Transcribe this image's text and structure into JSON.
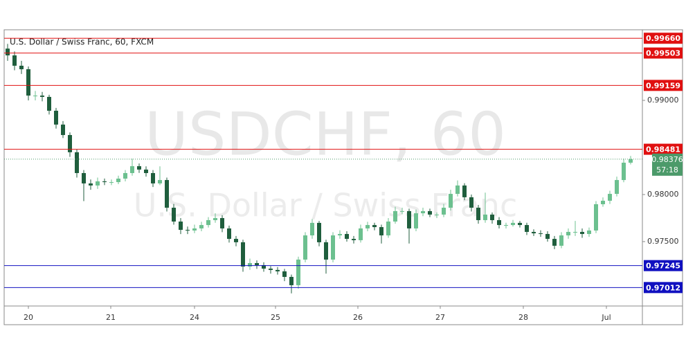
{
  "chart_data": {
    "type": "candlestick",
    "title": "U.S. Dollar / Swiss Franc, 60, FXCM",
    "watermark": "USDCHF, 60",
    "watermark_subtitle": "U.S. Dollar / Swiss Franc",
    "up_color": "#6cc08f",
    "down_color": "#1f5e3d",
    "open": [
      0.9955,
      0.99478,
      0.99368,
      0.99331,
      0.99051,
      0.99051,
      0.99037,
      0.9889,
      0.98743,
      0.98632,
      0.98449,
      0.98228,
      0.98118,
      0.98096,
      0.9814,
      0.98132,
      0.98132,
      0.98169,
      0.98228,
      0.98301,
      0.98265,
      0.98228,
      0.98118,
      0.98154,
      0.9786,
      0.97713,
      0.97625,
      0.97618,
      0.9764,
      0.97676,
      0.97728,
      0.9775,
      0.9764,
      0.97529,
      0.97493,
      0.97235,
      0.97272,
      0.9725,
      0.97213,
      0.97199,
      0.97184,
      0.97125,
      0.97037,
      0.97309,
      0.97566,
      0.97699,
      0.97493,
      0.97309,
      0.97566,
      0.97581,
      0.97529,
      0.97515,
      0.9764,
      0.97676,
      0.97654,
      0.97566,
      0.97713,
      0.97824,
      0.97824,
      0.9764,
      0.97801,
      0.97824,
      0.97787,
      0.97787,
      0.9786,
      0.98007,
      0.98096,
      0.97971,
      0.9786,
      0.97728,
      0.97787,
      0.97728,
      0.97676,
      0.97676,
      0.97699,
      0.97676,
      0.97603,
      0.97588,
      0.97581,
      0.97529,
      0.97456,
      0.97566,
      0.97603,
      0.97603,
      0.97581,
      0.97618,
      0.97897,
      0.97934,
      0.98007,
      0.98154,
      0.98338
    ],
    "high": [
      0.996,
      0.9952,
      0.9942,
      0.9936,
      0.991,
      0.9909,
      0.9906,
      0.9892,
      0.9878,
      0.9866,
      0.9848,
      0.9826,
      0.9816,
      0.9818,
      0.9817,
      0.9816,
      0.982,
      0.9826,
      0.9838,
      0.9833,
      0.983,
      0.9826,
      0.983,
      0.9818,
      0.979,
      0.9775,
      0.9766,
      0.9768,
      0.9771,
      0.9776,
      0.978,
      0.9778,
      0.9767,
      0.9756,
      0.9752,
      0.9732,
      0.973,
      0.9728,
      0.9724,
      0.9723,
      0.9721,
      0.9715,
      0.9734,
      0.976,
      0.9774,
      0.9772,
      0.9752,
      0.976,
      0.9762,
      0.9761,
      0.9756,
      0.9768,
      0.9771,
      0.977,
      0.9768,
      0.9775,
      0.9787,
      0.9786,
      0.9785,
      0.9784,
      0.9786,
      0.9785,
      0.9781,
      0.979,
      0.9805,
      0.9815,
      0.9812,
      0.98,
      0.9789,
      0.9802,
      0.9781,
      0.9776,
      0.977,
      0.9773,
      0.9772,
      0.977,
      0.9763,
      0.9762,
      0.9761,
      0.9756,
      0.976,
      0.9764,
      0.9772,
      0.9764,
      0.9765,
      0.9793,
      0.9797,
      0.9804,
      0.9819,
      0.9838,
      0.9841
    ],
    "low": [
      0.9942,
      0.9932,
      0.9928,
      0.99,
      0.99,
      0.9899,
      0.9885,
      0.987,
      0.986,
      0.984,
      0.9818,
      0.9793,
      0.9805,
      0.9806,
      0.981,
      0.981,
      0.9811,
      0.9814,
      0.982,
      0.9823,
      0.9819,
      0.9808,
      0.981,
      0.9782,
      0.9768,
      0.9758,
      0.9758,
      0.9759,
      0.9761,
      0.9765,
      0.977,
      0.976,
      0.9749,
      0.9745,
      0.9718,
      0.972,
      0.9721,
      0.9718,
      0.9716,
      0.9715,
      0.9708,
      0.9695,
      0.97,
      0.9728,
      0.9753,
      0.9745,
      0.9716,
      0.9728,
      0.9753,
      0.975,
      0.9748,
      0.9749,
      0.9761,
      0.9762,
      0.9748,
      0.9754,
      0.9769,
      0.9779,
      0.9748,
      0.9761,
      0.9777,
      0.9776,
      0.9775,
      0.9776,
      0.9783,
      0.9798,
      0.9794,
      0.9782,
      0.9769,
      0.977,
      0.9769,
      0.9764,
      0.9764,
      0.9766,
      0.9765,
      0.9757,
      0.9756,
      0.9755,
      0.975,
      0.9742,
      0.9743,
      0.9753,
      0.9756,
      0.9754,
      0.9755,
      0.9759,
      0.9787,
      0.979,
      0.9798,
      0.9813,
      0.9832
    ],
    "close": [
      0.99478,
      0.99368,
      0.99331,
      0.99051,
      0.99051,
      0.99037,
      0.9889,
      0.98743,
      0.98632,
      0.98449,
      0.98228,
      0.98118,
      0.98096,
      0.9814,
      0.98132,
      0.98132,
      0.98169,
      0.98228,
      0.98301,
      0.98265,
      0.98228,
      0.98118,
      0.98154,
      0.9786,
      0.97713,
      0.97625,
      0.97618,
      0.9764,
      0.97676,
      0.97728,
      0.9775,
      0.9764,
      0.97529,
      0.97493,
      0.97235,
      0.97272,
      0.9725,
      0.97213,
      0.97199,
      0.97184,
      0.97125,
      0.97037,
      0.97309,
      0.97566,
      0.97699,
      0.97493,
      0.97309,
      0.97566,
      0.97581,
      0.97529,
      0.97515,
      0.9764,
      0.97676,
      0.97654,
      0.97566,
      0.97713,
      0.97824,
      0.97824,
      0.9764,
      0.97801,
      0.97824,
      0.97787,
      0.97787,
      0.9786,
      0.98007,
      0.98096,
      0.97971,
      0.9786,
      0.97728,
      0.97787,
      0.97728,
      0.97676,
      0.97676,
      0.97699,
      0.97676,
      0.97603,
      0.97588,
      0.97581,
      0.97529,
      0.97456,
      0.97566,
      0.97603,
      0.97603,
      0.97581,
      0.97618,
      0.97897,
      0.97934,
      0.98007,
      0.98154,
      0.98338,
      0.98376
    ],
    "xlim": [
      0,
      92.2
    ],
    "xticks": [
      {
        "value": 3.5,
        "label": "20"
      },
      {
        "value": 15.4,
        "label": "21"
      },
      {
        "value": 27.5,
        "label": "24"
      },
      {
        "value": 39.2,
        "label": "25"
      },
      {
        "value": 51.1,
        "label": "26"
      },
      {
        "value": 63,
        "label": "27"
      },
      {
        "value": 75,
        "label": "28"
      },
      {
        "value": 87,
        "label": "Jul"
      }
    ],
    "ylim": [
      0.96816,
      0.9975
    ],
    "yticks": [
      {
        "value": 0.975,
        "label": "0.97500"
      },
      {
        "value": 0.98,
        "label": "0.98000"
      },
      {
        "value": 0.99,
        "label": "0.99000"
      }
    ],
    "levels": [
      {
        "value": 0.9966,
        "label": "0.99660",
        "color": "#e01010"
      },
      {
        "value": 0.99503,
        "label": "0.99503",
        "color": "#e01010"
      },
      {
        "value": 0.99159,
        "label": "0.99159",
        "color": "#e01010"
      },
      {
        "value": 0.98481,
        "label": "0.98481",
        "color": "#e01010"
      },
      {
        "value": 0.97245,
        "label": "0.97245",
        "color": "#1010c0"
      },
      {
        "value": 0.97012,
        "label": "0.97012",
        "color": "#1010c0"
      }
    ],
    "last_price": {
      "value": 0.98376,
      "label": "0.98376",
      "color": "#4c9a6a"
    },
    "countdown": "57:18"
  }
}
